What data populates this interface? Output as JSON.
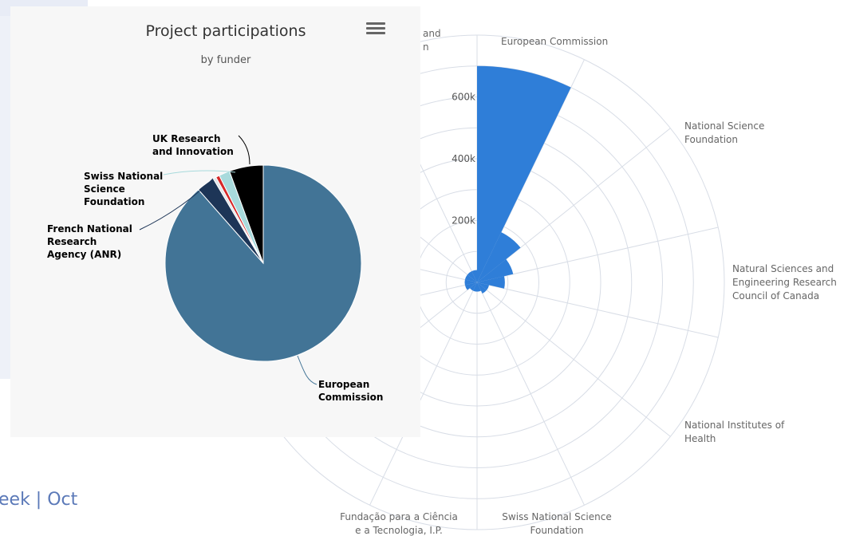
{
  "footer_text": "eek | Oct",
  "menu_icon": "hamburger-menu-icon",
  "colors": {
    "polar_bar": "#2f7ed8",
    "polar_grid": "#d8dde6",
    "pie_background": "#f7f7f7",
    "footer": "#5b79b8"
  },
  "chart_data": [
    {
      "type": "pie",
      "title": "Project participations",
      "subtitle": "by funder",
      "slices": [
        {
          "name": "European Commission",
          "value": 88.5,
          "color": "#427496",
          "label": "European\nCommission"
        },
        {
          "name": "French National Research Agency (ANR)",
          "value": 3.0,
          "color": "#1d3557",
          "label": "French National\nResearch\nAgency (ANR)"
        },
        {
          "name": "Other",
          "value": 0.5,
          "color": "#e0e6ea",
          "label": ""
        },
        {
          "name": "Other",
          "value": 0.6,
          "color": "#d62828",
          "label": ""
        },
        {
          "name": "Swiss National Science Foundation",
          "value": 1.8,
          "color": "#a8dadc",
          "label": "Swiss National\nScience\nFoundation"
        },
        {
          "name": "UK Research and Innovation",
          "value": 5.6,
          "color": "#000000",
          "label": "UK Research\nand Innovation"
        }
      ]
    },
    {
      "type": "bar",
      "polar": true,
      "yticks": [
        200000,
        400000,
        600000
      ],
      "tick_labels": [
        "200k",
        "400k",
        "600k"
      ],
      "ylim": [
        0,
        800000
      ],
      "categories": [
        "European Commission",
        "National Science Foundation",
        "Natural Sciences and Engineering Research Council of Canada",
        "National Institutes of Health",
        "Swiss National Science Foundation",
        "Fundação para a Ciência e a Tecnologia, I.P.",
        "",
        "",
        "",
        "",
        "",
        "",
        "",
        "and\nn"
      ],
      "category_labels": [
        "European Commission",
        "National Science\nFoundation",
        "Natural Sciences and\nEngineering Research\nCouncil of Canada",
        "National Institutes of\nHealth",
        "Swiss National Science\nFoundation",
        "Fundação para a Ciência\ne a Tecnologia, I.P.",
        "",
        "",
        "",
        "",
        "",
        "",
        "",
        "and\nn"
      ],
      "values": [
        700000,
        180000,
        120000,
        90000,
        40000,
        40000,
        30000,
        30000,
        30000,
        40000,
        40000,
        40000,
        40000,
        40000
      ]
    }
  ]
}
